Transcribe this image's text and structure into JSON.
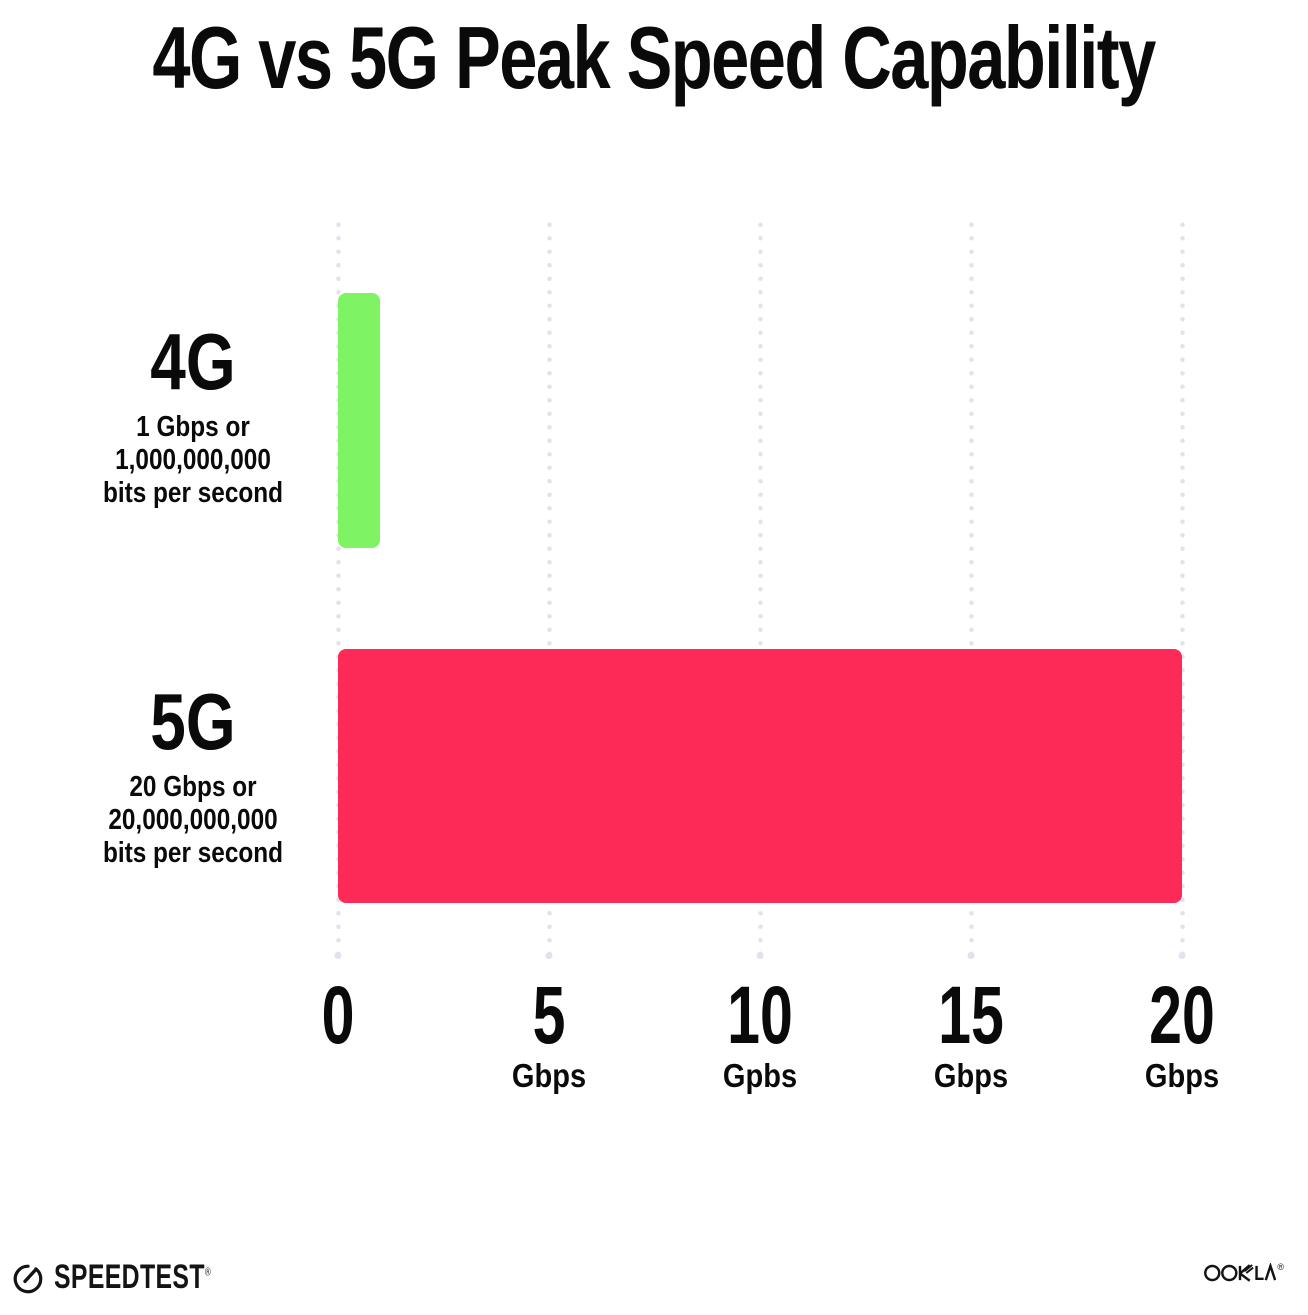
{
  "title": "4G vs 5G Peak Speed Capability",
  "chart_data": {
    "type": "bar",
    "orientation": "horizontal",
    "title": "4G vs 5G Peak Speed Capability",
    "categories": [
      "4G",
      "5G"
    ],
    "values": [
      1,
      20
    ],
    "rows": [
      {
        "label": "4G",
        "sub_lines": [
          "1 Gbps or",
          "1,000,000,000",
          "bits per second"
        ],
        "value": 1,
        "color": "#7EF465"
      },
      {
        "label": "5G",
        "sub_lines": [
          "20 Gbps or",
          "20,000,000,000",
          "bits per second"
        ],
        "value": 20,
        "color": "#FD2A57"
      }
    ],
    "x_axis": {
      "min": 0,
      "max": 20,
      "ticks": [
        {
          "value": 0,
          "label": "0",
          "unit": ""
        },
        {
          "value": 5,
          "label": "5",
          "unit": "Gbps"
        },
        {
          "value": 10,
          "label": "10",
          "unit": "Gpbs"
        },
        {
          "value": 15,
          "label": "15",
          "unit": "Gbps"
        },
        {
          "value": 20,
          "label": "20",
          "unit": "Gbps"
        }
      ]
    },
    "grid": "vertical-dotted",
    "legend": "none"
  },
  "colors": {
    "bar_4g": "#7EF465",
    "bar_5g": "#FD2A57",
    "gridline": "#E2E2EC",
    "text": "#0A0A0A",
    "background": "#FFFFFF"
  },
  "footer": {
    "speedtest_label": "SPEEDTEST",
    "speedtest_mark": "®",
    "speedtest_icon": "gauge-needle-icon",
    "ookla_label": "OOKLA",
    "ookla_mark": "®"
  }
}
